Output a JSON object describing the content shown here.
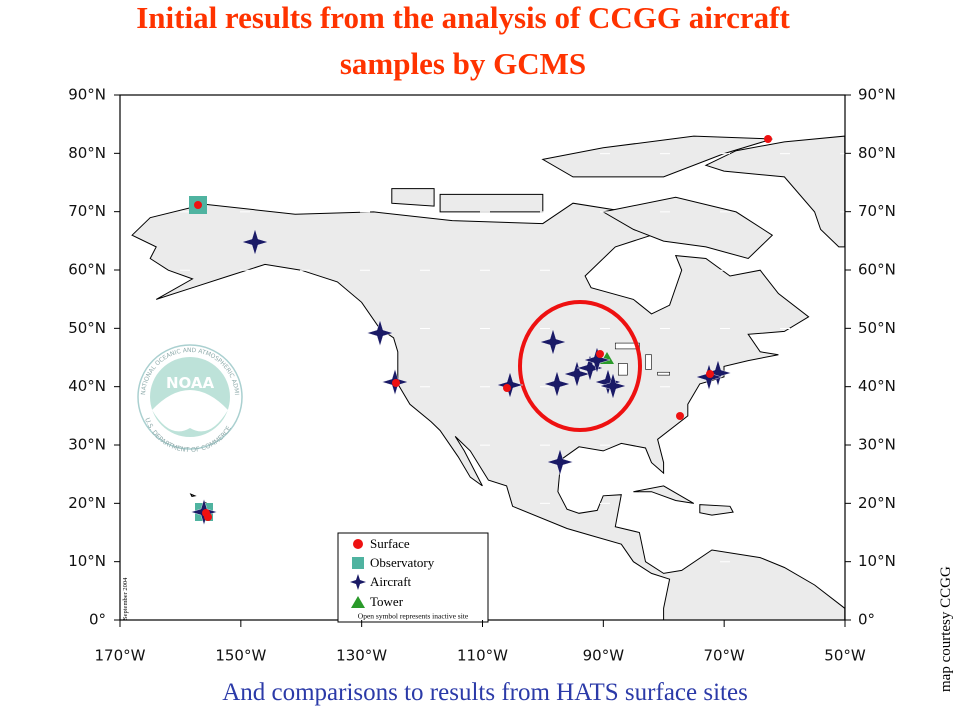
{
  "title": "Initial results from the analysis of CCGG aircraft samples by GCMS",
  "subtitle": "And comparisons to results from HATS surface sites",
  "latitude_labels": [
    "0°",
    "10°N",
    "20°N",
    "30°N",
    "40°N",
    "50°N",
    "60°N",
    "70°N",
    "80°N",
    "90°N"
  ],
  "longitude_labels": [
    "170°W",
    "150°W",
    "130°W",
    "110°W",
    "90°W",
    "70°W",
    "50°W"
  ],
  "legend": {
    "items": [
      "Surface",
      "Observatory",
      "Aircraft",
      "Tower"
    ],
    "note": "Open symbol represents inactive site"
  },
  "date_stamp": "September 2004",
  "credit": "map courtesy CCGG",
  "logo": {
    "name": "NOAA",
    "top_text": "NATIONAL OCEANIC AND ATMOSPHERIC ADMINISTRATION",
    "bottom_text": "U.S. DEPARTMENT OF COMMERCE"
  }
}
